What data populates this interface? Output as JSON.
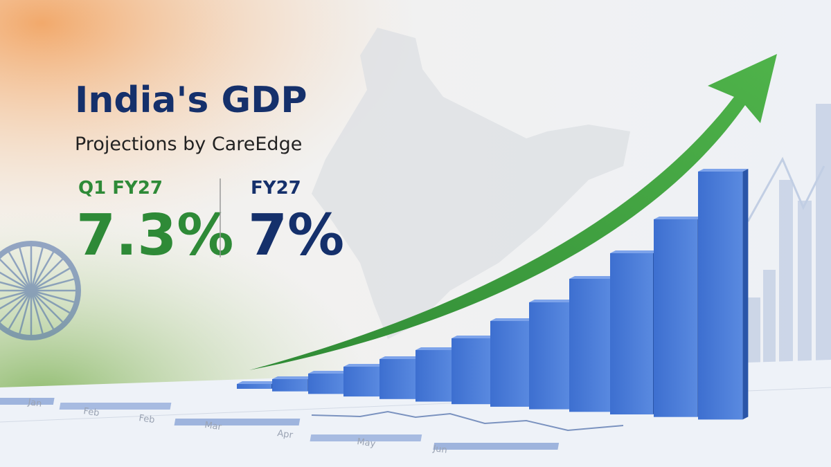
{
  "header": {
    "title": "India's GDP",
    "subtitle": "Projections by CareEdge"
  },
  "stats": [
    {
      "label": "Q1 FY27",
      "value": "7.3%"
    },
    {
      "label": "FY27",
      "value": "7%"
    }
  ],
  "paper_labels": [
    "Jan",
    "Feb",
    "Feb",
    "Mar",
    "Apr",
    "May",
    "Jun"
  ]
}
